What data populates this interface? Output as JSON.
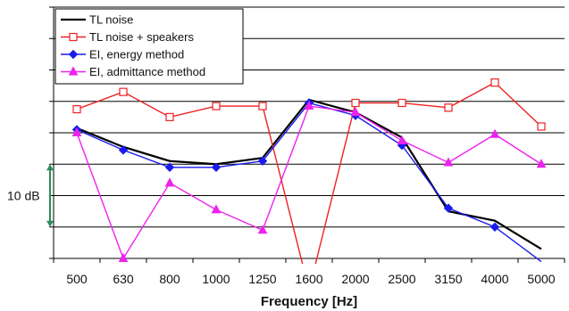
{
  "chart_data": {
    "type": "line",
    "title": "",
    "xlabel": "Frequency [Hz]",
    "ylabel": "",
    "categories": [
      "500",
      "630",
      "800",
      "1000",
      "1250",
      "1600",
      "2000",
      "2500",
      "3150",
      "4000",
      "5000"
    ],
    "ylim": [
      0,
      8
    ],
    "y_major_step": 1,
    "grid": "horizontal",
    "legend_position": "top-left",
    "scale_bar": {
      "label": "10 dB",
      "from": 1,
      "to": 3,
      "color": "#2e8b57"
    },
    "series": [
      {
        "name": "TL noise",
        "color": "#000000",
        "marker": "none",
        "values": [
          4.15,
          3.55,
          3.1,
          3.0,
          3.2,
          5.05,
          4.65,
          3.85,
          1.5,
          1.2,
          0.3
        ]
      },
      {
        "name": "TL noise + speakers",
        "color": "#ee2222",
        "marker": "open-square",
        "values": [
          4.75,
          5.3,
          4.5,
          4.85,
          4.85,
          -1.0,
          4.95,
          4.95,
          4.8,
          5.6,
          4.2
        ]
      },
      {
        "name": "EI, energy method",
        "color": "#1a1aee",
        "marker": "diamond",
        "values": [
          4.1,
          3.45,
          2.9,
          2.9,
          3.1,
          4.95,
          4.55,
          3.6,
          1.6,
          1.0,
          -0.1
        ]
      },
      {
        "name": "EI, admittance method",
        "color": "#ee22ee",
        "marker": "triangle",
        "values": [
          4.0,
          0.0,
          2.4,
          1.55,
          0.9,
          4.85,
          4.65,
          3.75,
          3.05,
          3.95,
          3.0
        ]
      }
    ]
  }
}
